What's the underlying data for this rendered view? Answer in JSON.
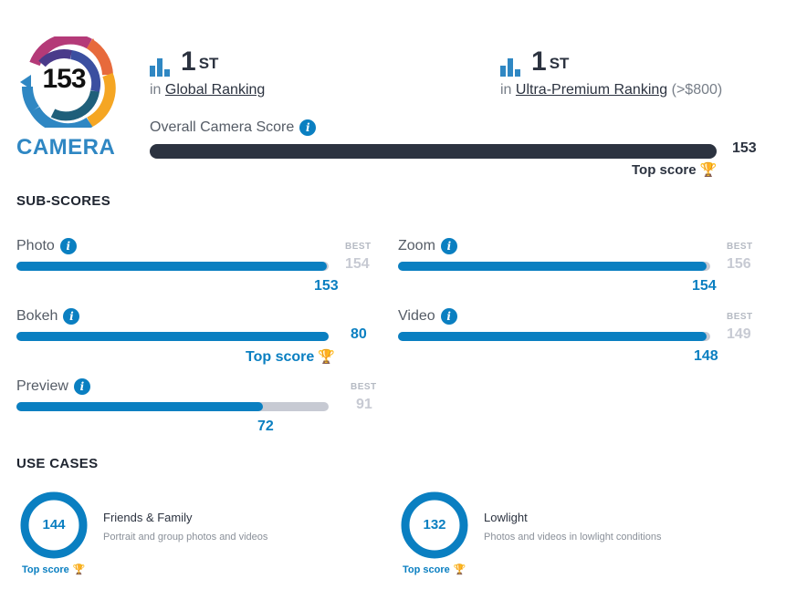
{
  "logo": {
    "score": "153",
    "label": "CAMERA"
  },
  "rankings": [
    {
      "rank": "1",
      "suffix": "ST",
      "prefix": "in",
      "link": "Global Ranking",
      "extra": ""
    },
    {
      "rank": "1",
      "suffix": "ST",
      "prefix": "in",
      "link": "Ultra-Premium Ranking",
      "extra": "(>$800)"
    }
  ],
  "overall": {
    "label": "Overall Camera Score",
    "value": "153",
    "top_label": "Top score",
    "fill": 1.0
  },
  "subscores_title": "SUB-SCORES",
  "best_label": "BEST",
  "subscores": [
    {
      "label": "Photo",
      "value": "153",
      "best": "154",
      "fill": 0.99,
      "top": ""
    },
    {
      "label": "Zoom",
      "value": "154",
      "best": "156",
      "fill": 0.99,
      "top": ""
    },
    {
      "label": "Bokeh",
      "value": "80",
      "best": "",
      "fill": 1.0,
      "top": "Top score"
    },
    {
      "label": "Video",
      "value": "148",
      "best": "149",
      "fill": 0.99,
      "top": ""
    },
    {
      "label": "Preview",
      "value": "72",
      "best": "91",
      "fill": 0.79,
      "top": ""
    }
  ],
  "usecases_title": "USE CASES",
  "usecases": [
    {
      "value": "144",
      "title": "Friends & Family",
      "desc": "Portrait and group photos and videos",
      "top": "Top score"
    },
    {
      "value": "132",
      "title": "Lowlight",
      "desc": "Photos and videos in lowlight conditions",
      "top": "Top score"
    }
  ],
  "colors": {
    "accent": "#0a7fc1",
    "dark": "#2c3340",
    "track": "#c7cad3",
    "trophy": "#f3a71b"
  }
}
